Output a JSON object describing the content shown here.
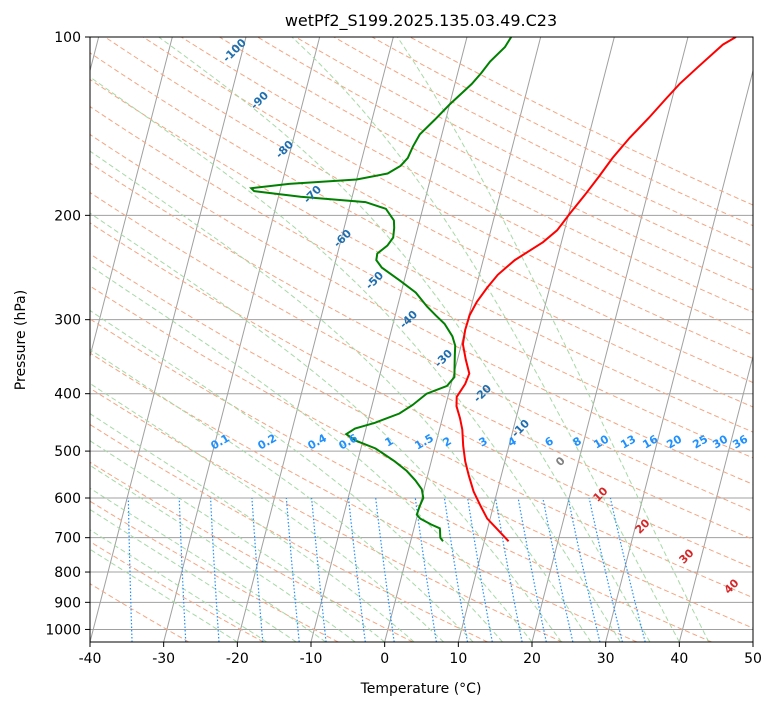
{
  "chart_data": {
    "type": "line",
    "subtype": "skew-T log-P diagram",
    "title": "wetPf2_S199.2025.135.03.49.C23",
    "xlabel": "Temperature (°C)",
    "ylabel": "Pressure (hPa)",
    "xlim": [
      -40,
      50
    ],
    "ylim": [
      1050,
      100
    ],
    "y_scale": "log",
    "x_ticks": [
      -40,
      -30,
      -20,
      -10,
      0,
      10,
      20,
      30,
      40,
      50
    ],
    "y_ticks": [
      100,
      200,
      300,
      400,
      500,
      600,
      700,
      800,
      900,
      1000
    ],
    "grid": true,
    "series": [
      {
        "name": "Temperature",
        "color": "#ff0000",
        "points": [
          [
            13.3,
            710
          ],
          [
            11.5,
            680
          ],
          [
            9.6,
            650
          ],
          [
            8.3,
            620
          ],
          [
            6.8,
            585
          ],
          [
            5.6,
            550
          ],
          [
            4.6,
            520
          ],
          [
            3.8,
            490
          ],
          [
            3.1,
            460
          ],
          [
            2.4,
            440
          ],
          [
            1.5,
            420
          ],
          [
            1.2,
            405
          ],
          [
            1.9,
            385
          ],
          [
            2.1,
            370
          ],
          [
            1.1,
            350
          ],
          [
            0.2,
            330
          ],
          [
            0.0,
            312
          ],
          [
            0.1,
            295
          ],
          [
            0.6,
            280
          ],
          [
            1.5,
            265
          ],
          [
            2.5,
            252
          ],
          [
            4.3,
            238
          ],
          [
            7.5,
            222
          ],
          [
            9.0,
            212
          ],
          [
            10.2,
            198
          ],
          [
            11.5,
            185
          ],
          [
            12.8,
            172
          ],
          [
            14.0,
            160
          ],
          [
            15.6,
            148
          ],
          [
            17.5,
            137
          ],
          [
            19.2,
            127
          ],
          [
            20.5,
            120
          ],
          [
            22.5,
            112
          ],
          [
            25.0,
            103
          ],
          [
            26.5,
            100
          ]
        ]
      },
      {
        "name": "Dewpoint",
        "color": "#008000",
        "points": [
          [
            4.4,
            710
          ],
          [
            3.9,
            700
          ],
          [
            3.6,
            680
          ],
          [
            3.5,
            675
          ],
          [
            2.2,
            665
          ],
          [
            0.5,
            650
          ],
          [
            -0.1,
            640
          ],
          [
            0.0,
            620
          ],
          [
            0.2,
            600
          ],
          [
            -0.3,
            580
          ],
          [
            -1.5,
            560
          ],
          [
            -3.0,
            540
          ],
          [
            -5.0,
            520
          ],
          [
            -8.0,
            495
          ],
          [
            -11.0,
            480
          ],
          [
            -12.5,
            468
          ],
          [
            -11.5,
            458
          ],
          [
            -9.0,
            448
          ],
          [
            -6.0,
            432
          ],
          [
            -4.5,
            418
          ],
          [
            -3.0,
            400
          ],
          [
            -0.5,
            388
          ],
          [
            0.2,
            375
          ],
          [
            -0.2,
            358
          ],
          [
            -0.5,
            345
          ],
          [
            -0.8,
            332
          ],
          [
            -1.5,
            320
          ],
          [
            -3.0,
            305
          ],
          [
            -4.5,
            295
          ],
          [
            -6.0,
            285
          ],
          [
            -8.0,
            270
          ],
          [
            -10.5,
            258
          ],
          [
            -13.5,
            245
          ],
          [
            -14.5,
            238
          ],
          [
            -14.6,
            232
          ],
          [
            -13.5,
            225
          ],
          [
            -13.0,
            218
          ],
          [
            -13.2,
            210
          ],
          [
            -13.5,
            204
          ],
          [
            -15.0,
            195
          ],
          [
            -18.0,
            190
          ],
          [
            -27.0,
            186
          ],
          [
            -33.5,
            182
          ],
          [
            -34.0,
            180
          ],
          [
            -29.0,
            177
          ],
          [
            -20.0,
            174
          ],
          [
            -16.0,
            170
          ],
          [
            -14.5,
            165
          ],
          [
            -13.8,
            160
          ],
          [
            -13.5,
            153
          ],
          [
            -13.0,
            146
          ],
          [
            -11.5,
            138
          ],
          [
            -10.0,
            130
          ],
          [
            -7.7,
            120
          ],
          [
            -6.8,
            115
          ],
          [
            -6.0,
            110
          ],
          [
            -4.5,
            104
          ],
          [
            -4.0,
            100
          ]
        ]
      }
    ],
    "dry_adiabat_labels": [
      "-100",
      "-90",
      "-80",
      "-70",
      "-60",
      "-50",
      "-40",
      "-30",
      "-20",
      "-10",
      "0",
      "10",
      "20",
      "30",
      "40"
    ],
    "mixing_ratio_labels": [
      "0.1",
      "0.2",
      "0.4",
      "0.6",
      "1",
      "1.5",
      "2",
      "3",
      "4",
      "6",
      "8",
      "10",
      "13",
      "16",
      "20",
      "25",
      "30",
      "36"
    ],
    "colors": {
      "temperature": "#ff0000",
      "dewpoint": "#008000",
      "isotherm": "#a0a0a0",
      "isobar": "#a0a0a0",
      "dry_adiabat": "#f4a582",
      "moist_adiabat": "#a6d9a6",
      "mixing_ratio": "#1e90ff",
      "dry_label": "#1f6fb0",
      "moist_label": "#d62728"
    }
  }
}
